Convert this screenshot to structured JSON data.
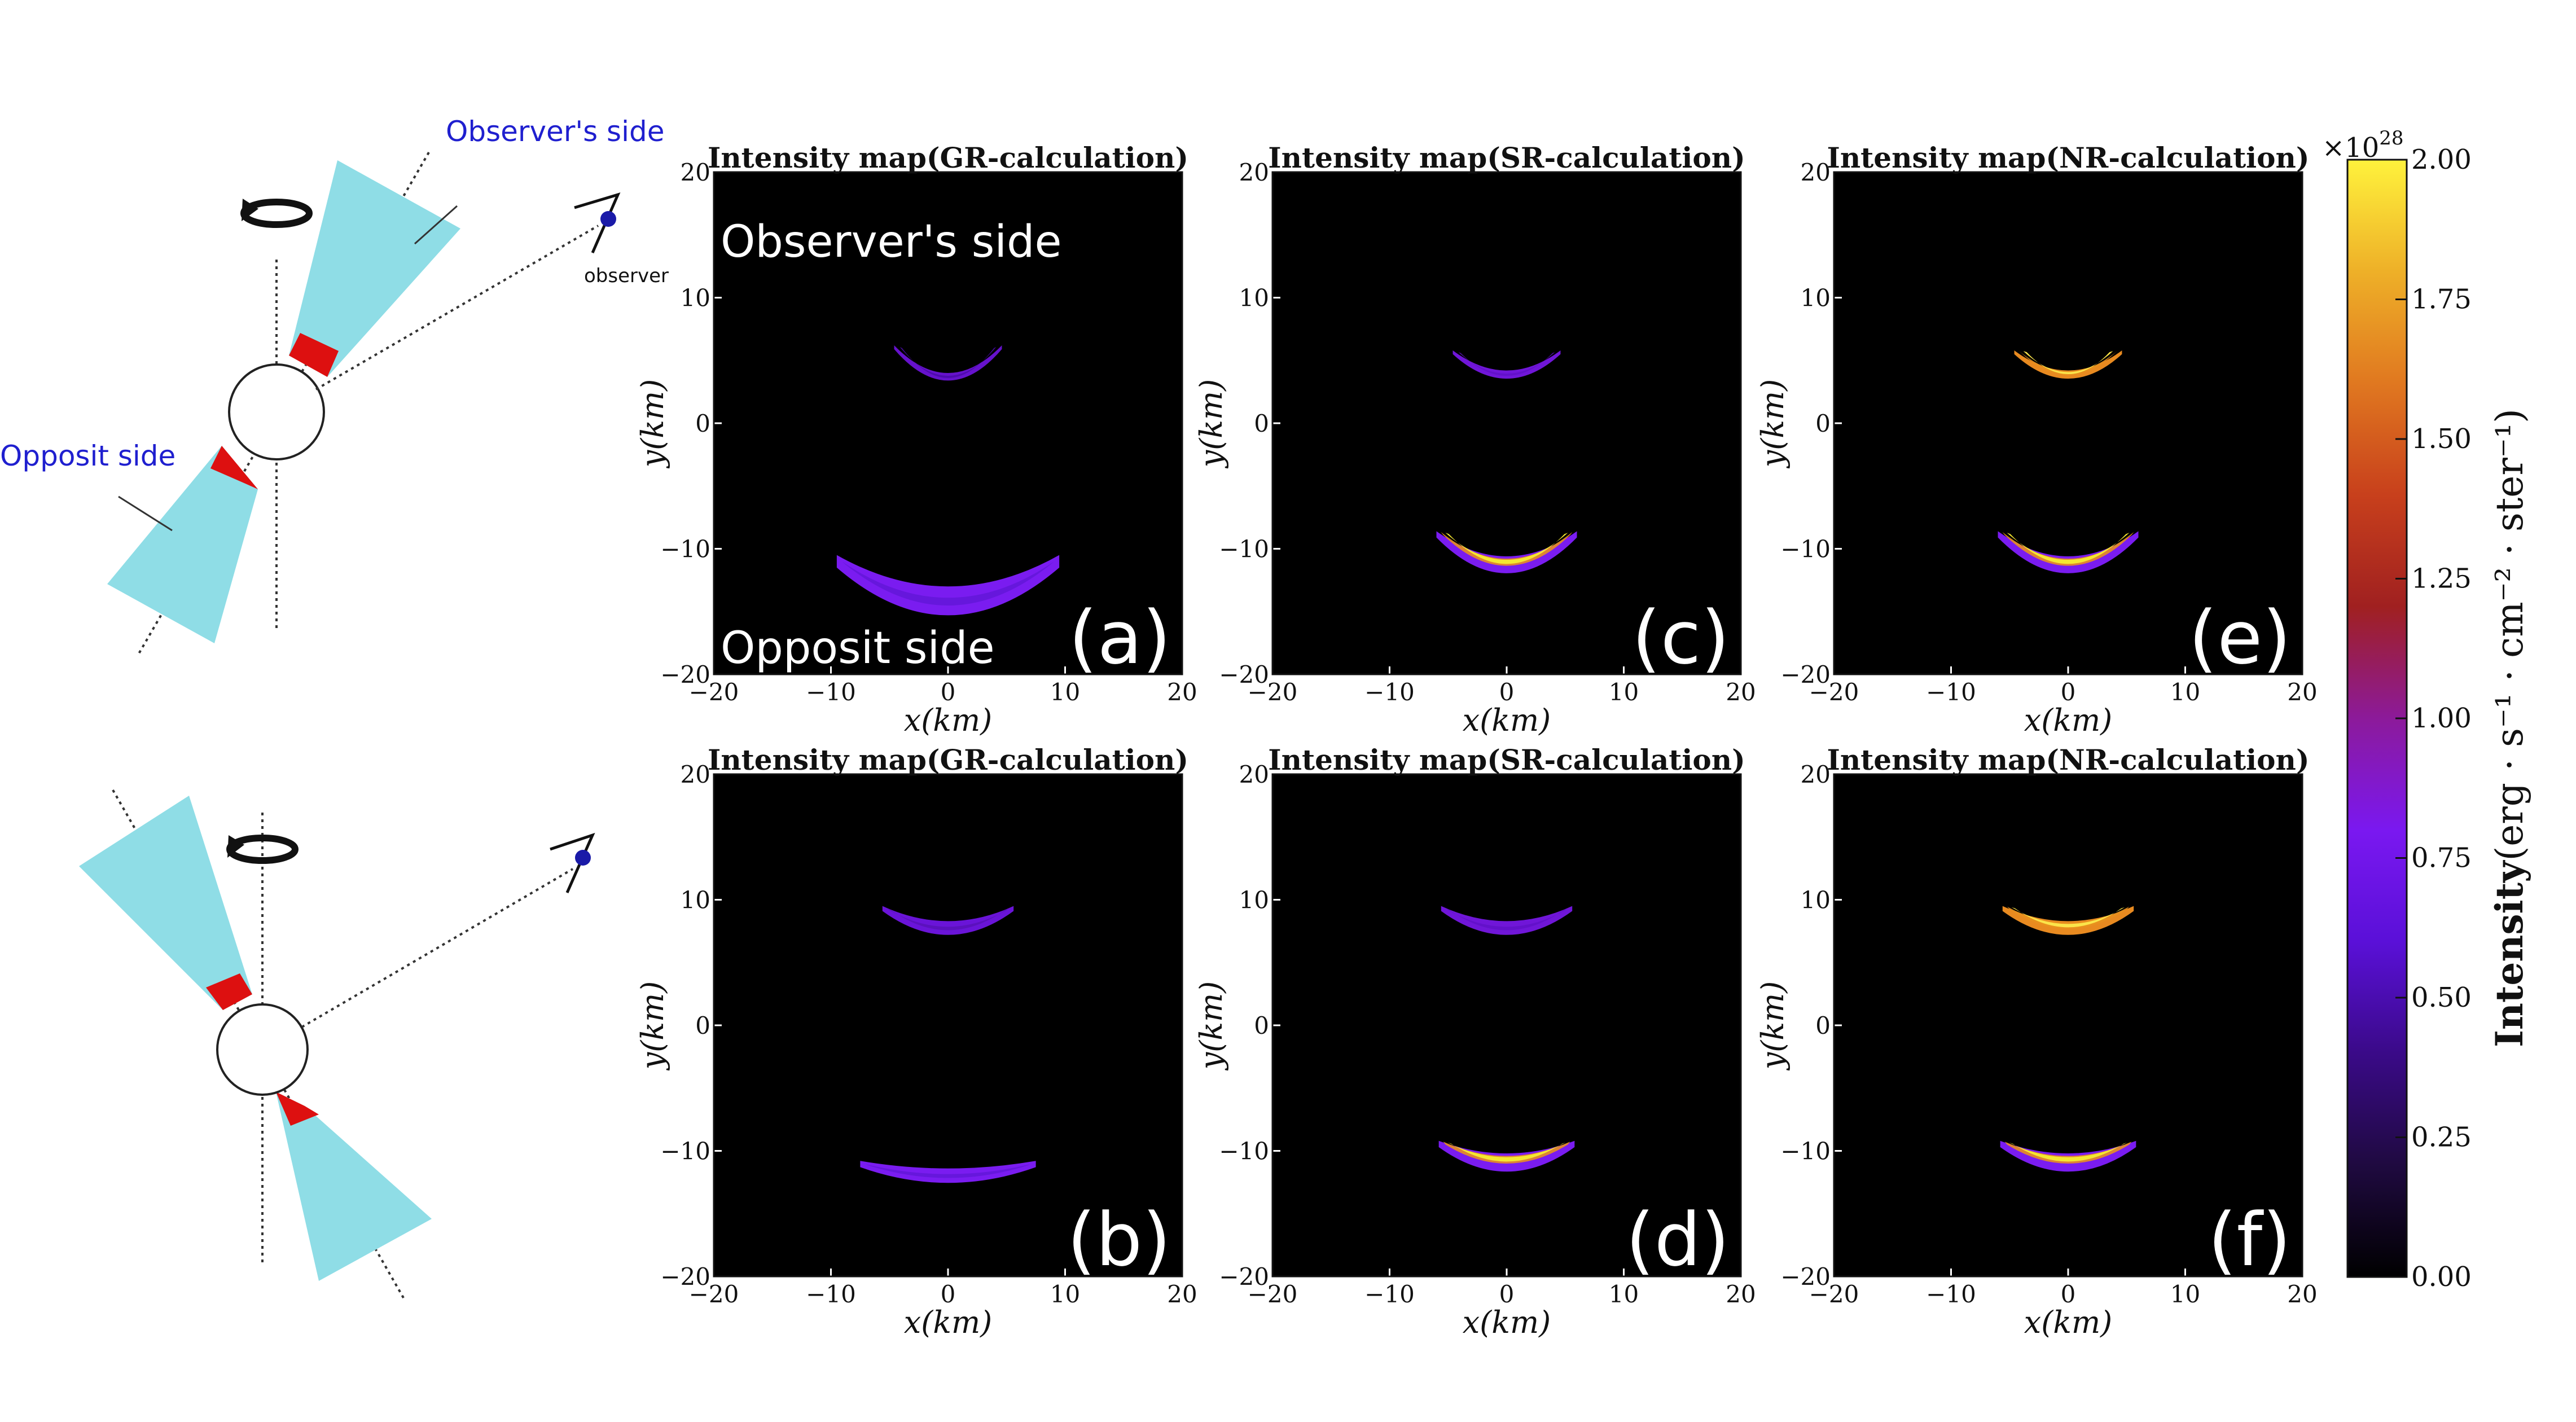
{
  "schematic": {
    "top": {
      "observer_side_label": "Observer's side",
      "opposite_side_label": "Opposit side",
      "observer_label": "observer"
    }
  },
  "panels": [
    {
      "id": "a",
      "title": "Intensity map(GR-calculation)",
      "letter": "(a)",
      "annotation_top": "Observer's side",
      "annotation_bottom": "Opposit side",
      "arcs": [
        {
          "cx": 0,
          "cy": 6.2,
          "half_width": 4.6,
          "sag": 2.2,
          "thickness": 0.45,
          "cap_left": 0.3,
          "cap_right": 0.3,
          "edge": "#6612cc",
          "core": "#4a0aa8",
          "glow": false
        },
        {
          "cx": 0,
          "cy": -10.5,
          "half_width": 9.5,
          "sag": 2.5,
          "thickness": 1.8,
          "cap_left": 1.0,
          "cap_right": 1.0,
          "edge": "#7a1cf0",
          "core": "#6316d8",
          "glow": false
        }
      ]
    },
    {
      "id": "c",
      "title": "Intensity map(SR-calculation)",
      "letter": "(c)",
      "annotation_top": "",
      "annotation_bottom": "",
      "arcs": [
        {
          "cx": 0,
          "cy": 5.8,
          "half_width": 4.6,
          "sag": 1.6,
          "thickness": 0.5,
          "cap_left": 0.3,
          "cap_right": 0.3,
          "edge": "#7016d8",
          "core": "#6010c8",
          "glow": false
        },
        {
          "cx": 0,
          "cy": -8.6,
          "half_width": 6.0,
          "sag": 2.0,
          "thickness": 1.1,
          "cap_left": 0.5,
          "cap_right": 0.5,
          "edge": "#7a1cf0",
          "core": "#f4e830",
          "glow": true
        }
      ]
    },
    {
      "id": "e",
      "title": "Intensity map(NR-calculation)",
      "letter": "(e)",
      "annotation_top": "",
      "annotation_bottom": "",
      "arcs": [
        {
          "cx": 0,
          "cy": 5.8,
          "half_width": 4.6,
          "sag": 1.6,
          "thickness": 0.5,
          "cap_left": 0.3,
          "cap_right": 0.3,
          "edge": "#e88a20",
          "core": "#fbe44a",
          "glow": true
        },
        {
          "cx": 0,
          "cy": -8.6,
          "half_width": 6.0,
          "sag": 2.0,
          "thickness": 1.1,
          "cap_left": 0.5,
          "cap_right": 0.5,
          "edge": "#7a1cf0",
          "core": "#f4e830",
          "glow": true
        }
      ]
    },
    {
      "id": "b",
      "title": "Intensity map(GR-calculation)",
      "letter": "(b)",
      "annotation_top": "",
      "annotation_bottom": "",
      "arcs": [
        {
          "cx": 0,
          "cy": 9.5,
          "half_width": 5.6,
          "sag": 1.2,
          "thickness": 0.9,
          "cap_left": 0.4,
          "cap_right": 0.4,
          "edge": "#6a14d8",
          "core": "#5810b8",
          "glow": false
        },
        {
          "cx": 0,
          "cy": -10.8,
          "half_width": 7.5,
          "sag": 0.6,
          "thickness": 0.9,
          "cap_left": 0.5,
          "cap_right": 0.5,
          "edge": "#7a1cf0",
          "core": "#6316d8",
          "glow": false
        }
      ]
    },
    {
      "id": "d",
      "title": "Intensity map(SR-calculation)",
      "letter": "(d)",
      "annotation_top": "",
      "annotation_bottom": "",
      "arcs": [
        {
          "cx": 0,
          "cy": 9.5,
          "half_width": 5.6,
          "sag": 1.2,
          "thickness": 0.9,
          "cap_left": 0.4,
          "cap_right": 0.4,
          "edge": "#7016d8",
          "core": "#6010c8",
          "glow": false
        },
        {
          "cx": 0,
          "cy": -9.2,
          "half_width": 5.8,
          "sag": 1.0,
          "thickness": 1.2,
          "cap_left": 0.5,
          "cap_right": 0.5,
          "edge": "#7a1cf0",
          "core": "#f4e830",
          "glow": true
        }
      ]
    },
    {
      "id": "f",
      "title": "Intensity map(NR-calculation)",
      "letter": "(f)",
      "annotation_top": "",
      "annotation_bottom": "",
      "arcs": [
        {
          "cx": 0,
          "cy": 9.5,
          "half_width": 5.6,
          "sag": 1.2,
          "thickness": 0.9,
          "cap_left": 0.4,
          "cap_right": 0.4,
          "edge": "#e88a20",
          "core": "#fbe44a",
          "glow": true
        },
        {
          "cx": 0,
          "cy": -9.2,
          "half_width": 5.8,
          "sag": 1.0,
          "thickness": 1.2,
          "cap_left": 0.5,
          "cap_right": 0.5,
          "edge": "#7a1cf0",
          "core": "#f4e830",
          "glow": true
        }
      ]
    }
  ],
  "axes": {
    "xlabel": "x(km)",
    "ylabel": "y(km)",
    "xlim": [
      -20,
      20
    ],
    "ylim": [
      -20,
      20
    ],
    "xticks": [
      -20,
      -10,
      0,
      10,
      20
    ],
    "yticks": [
      -20,
      -10,
      0,
      10,
      20
    ]
  },
  "colorbar": {
    "label_bold": "Intensity",
    "label_units": "(erg · s⁻¹ · cm⁻² · ster⁻¹)",
    "multiplier": "×10",
    "multiplier_exp": "28",
    "ticks": [
      "0.00",
      "0.25",
      "0.50",
      "0.75",
      "1.00",
      "1.25",
      "1.50",
      "1.75",
      "2.00"
    ],
    "vmin": 0,
    "vmax": 2.0,
    "colors": [
      "#000000",
      "#1f0a40",
      "#3a0a88",
      "#5a10d8",
      "#7a18f0",
      "#8c1a9a",
      "#a02020",
      "#c8401c",
      "#e07820",
      "#eeb028",
      "#fff23c"
    ]
  },
  "chart_data": [
    {
      "type": "heatmap",
      "title": "Intensity map(GR-calculation)",
      "xlabel": "x(km)",
      "ylabel": "y(km)",
      "xlim": [
        -20,
        20
      ],
      "ylim": [
        -20,
        20
      ]
    },
    {
      "type": "heatmap",
      "title": "Intensity map(SR-calculation)",
      "xlabel": "x(km)",
      "ylabel": "y(km)",
      "xlim": [
        -20,
        20
      ],
      "ylim": [
        -20,
        20
      ]
    },
    {
      "type": "heatmap",
      "title": "Intensity map(NR-calculation)",
      "xlabel": "x(km)",
      "ylabel": "y(km)",
      "xlim": [
        -20,
        20
      ],
      "ylim": [
        -20,
        20
      ]
    },
    {
      "type": "heatmap",
      "title": "Intensity map(GR-calculation)",
      "xlabel": "x(km)",
      "ylabel": "y(km)",
      "xlim": [
        -20,
        20
      ],
      "ylim": [
        -20,
        20
      ]
    },
    {
      "type": "heatmap",
      "title": "Intensity map(SR-calculation)",
      "xlabel": "x(km)",
      "ylabel": "y(km)",
      "xlim": [
        -20,
        20
      ],
      "ylim": [
        -20,
        20
      ]
    },
    {
      "type": "heatmap",
      "title": "Intensity map(NR-calculation)",
      "xlabel": "x(km)",
      "ylabel": "y(km)",
      "xlim": [
        -20,
        20
      ],
      "ylim": [
        -20,
        20
      ]
    }
  ]
}
